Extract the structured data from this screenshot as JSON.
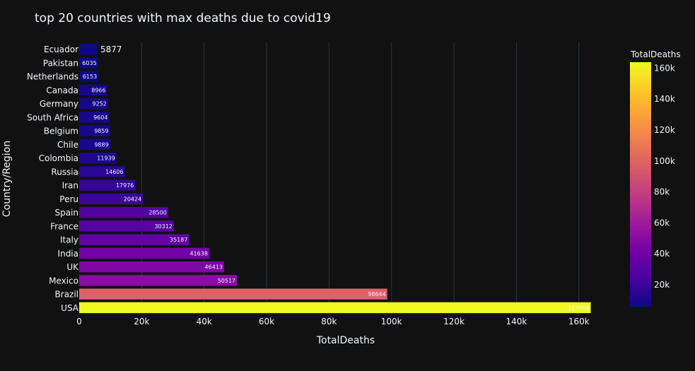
{
  "chart_data": {
    "type": "bar",
    "orientation": "horizontal",
    "title": "top 20 countries with max deaths due to covid19",
    "xlabel": "TotalDeaths",
    "ylabel": "Country/Region",
    "xlim": [
      0,
      163000
    ],
    "x_ticks": [
      0,
      20000,
      40000,
      60000,
      80000,
      100000,
      120000,
      140000,
      160000
    ],
    "x_tick_labels": [
      "0",
      "20k",
      "40k",
      "60k",
      "80k",
      "100k",
      "120k",
      "140k",
      "160k"
    ],
    "grid": true,
    "categories": [
      "USA",
      "Brazil",
      "Mexico",
      "UK",
      "India",
      "Italy",
      "France",
      "Spain",
      "Peru",
      "Iran",
      "Russia",
      "Colombia",
      "Chile",
      "Belgium",
      "South Africa",
      "Germany",
      "Canada",
      "Netherlands",
      "Pakistan",
      "Ecuador"
    ],
    "values": [
      163804,
      98644,
      50517,
      46413,
      41638,
      35187,
      30312,
      28500,
      20424,
      17976,
      14606,
      11939,
      9889,
      9859,
      9604,
      9252,
      8966,
      6153,
      6035,
      5877
    ],
    "value_labels": [
      "163804",
      "98644",
      "50517",
      "46413",
      "41638",
      "35187",
      "30312",
      "28500",
      "20424",
      "17976",
      "14606",
      "11939",
      "9889",
      "9859",
      "9604",
      "9252",
      "8966",
      "6153",
      "6035",
      "5877"
    ],
    "colorbar": {
      "title": "TotalDeaths",
      "min": 5877,
      "max": 163804,
      "ticks": [
        20000,
        40000,
        60000,
        80000,
        100000,
        120000,
        140000,
        160000
      ],
      "tick_labels": [
        "20k",
        "40k",
        "60k",
        "80k",
        "100k",
        "120k",
        "140k",
        "160k"
      ],
      "colorscale": [
        "#0d0887",
        "#46039f",
        "#7201a8",
        "#9c179e",
        "#bd3786",
        "#d8576b",
        "#ed7953",
        "#fb9f3a",
        "#fdca26",
        "#f0f921"
      ]
    },
    "colors": {
      "background": "#111111",
      "grid": "#283442",
      "text": "#f2f5fa"
    }
  }
}
